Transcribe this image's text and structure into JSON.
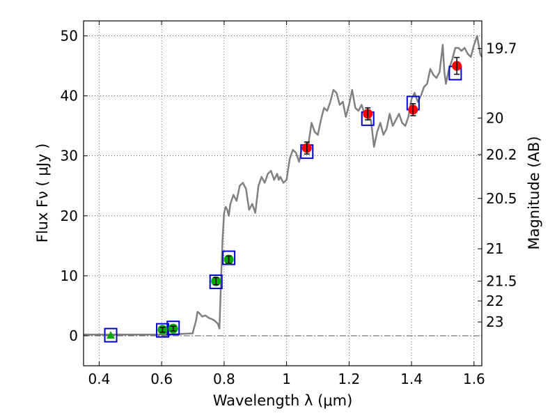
{
  "chart_data": {
    "type": "scatter",
    "title": "",
    "xlabel": "Wavelength  λ (μm)",
    "ylabel": "Flux  Fν  ( μJy )",
    "y2label": "Magnitude (AB)",
    "xlim": [
      0.35,
      1.625
    ],
    "ylim": [
      -5,
      52.5
    ],
    "grid": true,
    "grid_style": "dotted",
    "legend": "none",
    "x_ticks": [
      {
        "value": 0.4,
        "label": "0.4"
      },
      {
        "value": 0.6,
        "label": "0.6"
      },
      {
        "value": 0.8,
        "label": "0.8"
      },
      {
        "value": 1.0,
        "label": "1"
      },
      {
        "value": 1.2,
        "label": "1.2"
      },
      {
        "value": 1.4,
        "label": "1.4"
      },
      {
        "value": 1.6,
        "label": "1.6"
      }
    ],
    "y_ticks": [
      {
        "value": 0,
        "label": "0"
      },
      {
        "value": 10,
        "label": "10"
      },
      {
        "value": 20,
        "label": "20"
      },
      {
        "value": 30,
        "label": "30"
      },
      {
        "value": 40,
        "label": "40"
      },
      {
        "value": 50,
        "label": "50"
      }
    ],
    "y2_ticks": [
      {
        "flux": 47.9,
        "label": "19.7"
      },
      {
        "flux": 36.3,
        "label": "20"
      },
      {
        "flux": 30.2,
        "label": "20.2"
      },
      {
        "flux": 22.9,
        "label": "20.5"
      },
      {
        "flux": 14.5,
        "label": "21"
      },
      {
        "flux": 9.1,
        "label": "21.5"
      },
      {
        "flux": 5.8,
        "label": "22"
      },
      {
        "flux": 2.3,
        "label": "23"
      }
    ],
    "zero_line": {
      "y": 0,
      "style": "dash-dot",
      "color": "#555555"
    },
    "template_spectrum": {
      "color": "#808080",
      "x": [
        0.35,
        0.43,
        0.44,
        0.5,
        0.6,
        0.66,
        0.7,
        0.7,
        0.71,
        0.715,
        0.72,
        0.73,
        0.74,
        0.75,
        0.76,
        0.77,
        0.78,
        0.785,
        0.79,
        0.795,
        0.8,
        0.805,
        0.81,
        0.815,
        0.82,
        0.83,
        0.84,
        0.85,
        0.86,
        0.87,
        0.88,
        0.89,
        0.9,
        0.91,
        0.92,
        0.93,
        0.94,
        0.95,
        0.96,
        0.97,
        0.975,
        0.98,
        0.99,
        1.0,
        1.01,
        1.02,
        1.03,
        1.04,
        1.05,
        1.06,
        1.07,
        1.08,
        1.09,
        1.1,
        1.11,
        1.12,
        1.13,
        1.14,
        1.15,
        1.16,
        1.17,
        1.18,
        1.19,
        1.2,
        1.21,
        1.22,
        1.23,
        1.24,
        1.25,
        1.26,
        1.27,
        1.28,
        1.29,
        1.3,
        1.31,
        1.32,
        1.33,
        1.34,
        1.35,
        1.36,
        1.37,
        1.38,
        1.39,
        1.4,
        1.41,
        1.42,
        1.43,
        1.44,
        1.45,
        1.46,
        1.47,
        1.48,
        1.49,
        1.5,
        1.505,
        1.51,
        1.52,
        1.53,
        1.54,
        1.55,
        1.56,
        1.57,
        1.58,
        1.59,
        1.6,
        1.61,
        1.615,
        1.62,
        1.625
      ],
      "y": [
        0.2,
        0.2,
        0.2,
        0.2,
        0.2,
        0.3,
        0.4,
        0.6,
        2.5,
        4.0,
        3.8,
        3.2,
        3.4,
        3.0,
        2.8,
        2.5,
        2.0,
        1.2,
        9.0,
        16.0,
        20.5,
        21.5,
        21.0,
        20.0,
        22.0,
        23.5,
        22.5,
        25.0,
        25.5,
        24.5,
        21.0,
        22.0,
        20.5,
        25.0,
        26.5,
        25.5,
        27.0,
        27.5,
        26.0,
        27.0,
        26.0,
        26.5,
        25.5,
        26.0,
        29.5,
        31.0,
        30.5,
        29.0,
        31.5,
        31.0,
        32.0,
        35.5,
        34.0,
        33.5,
        36.0,
        38.0,
        37.5,
        39.0,
        41.0,
        40.5,
        38.5,
        39.0,
        36.5,
        38.5,
        41.0,
        38.0,
        37.5,
        38.5,
        37.0,
        36.5,
        36.0,
        31.5,
        34.0,
        35.5,
        33.5,
        34.5,
        37.0,
        35.0,
        36.0,
        37.0,
        35.5,
        35.0,
        36.5,
        39.5,
        40.5,
        39.0,
        40.0,
        41.5,
        42.0,
        44.5,
        43.5,
        43.0,
        44.0,
        48.5,
        44.0,
        42.0,
        44.5,
        46.0,
        48.0,
        48.0,
        47.5,
        48.0,
        47.0,
        46.5,
        48.5,
        50.0,
        48.5,
        47.0,
        46.5
      ]
    },
    "model_points": {
      "marker": "open-square",
      "color": "#0000cc",
      "x": [
        0.437,
        0.603,
        0.637,
        0.774,
        0.815,
        1.065,
        1.26,
        1.405,
        1.54
      ],
      "y": [
        0.1,
        0.9,
        1.3,
        9.0,
        13.0,
        30.7,
        36.2,
        38.8,
        43.8
      ]
    },
    "observed_optical": {
      "marker": "circle",
      "color": "#00aa00",
      "x": [
        0.603,
        0.637,
        0.774,
        0.815
      ],
      "y": [
        1.0,
        1.2,
        9.1,
        12.7
      ],
      "yerr": [
        0.4,
        0.4,
        0.6,
        0.6
      ]
    },
    "upper_limit": {
      "marker": "triangle",
      "color": "#00aa00",
      "x": [
        0.437
      ],
      "y": [
        0.1
      ]
    },
    "observed_nir": {
      "marker": "circle",
      "color": "#ff0000",
      "x": [
        1.065,
        1.26,
        1.405,
        1.545
      ],
      "y": [
        31.3,
        37.0,
        37.7,
        45.0
      ],
      "yerr": [
        1.0,
        1.0,
        1.0,
        1.4
      ]
    }
  }
}
